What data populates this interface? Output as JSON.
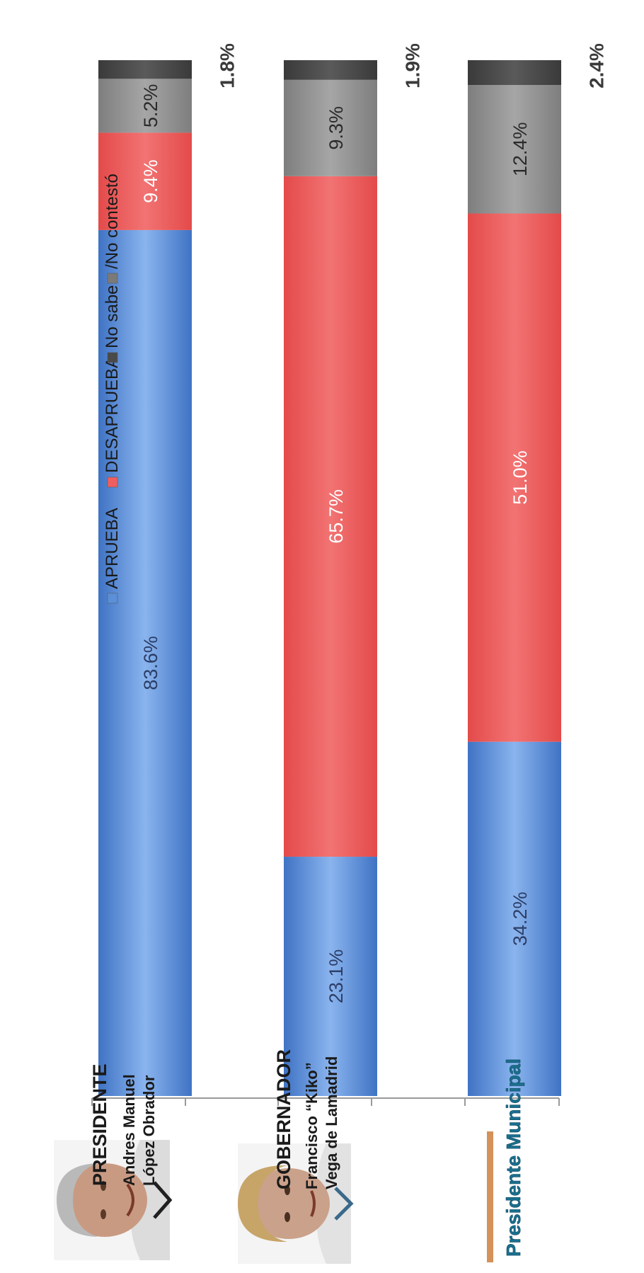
{
  "chart_data": {
    "type": "bar",
    "stacked": true,
    "orientation": "horizontal",
    "value_format": "percent",
    "xlim": [
      0,
      100
    ],
    "legend_placement": "top",
    "categories": [
      {
        "role": "PRESIDENTE",
        "name_line1": "Andres Manuel",
        "name_line2": "López Obrador"
      },
      {
        "role": "GOBERNADOR",
        "name_line1": "Francisco “Kiko”",
        "name_line2": "Vega de Lamadrid"
      },
      {
        "role": "Presidente Municipal",
        "name_line1": "",
        "name_line2": ""
      }
    ],
    "series": [
      {
        "name": "APRUEBA",
        "color": "#5b8fd8",
        "values": [
          83.6,
          23.1,
          34.2
        ],
        "labels": [
          "83.6%",
          "23.1%",
          "34.2%"
        ]
      },
      {
        "name": "DESAPRUEBA",
        "color": "#ef5f5f",
        "values": [
          9.4,
          65.7,
          51.0
        ],
        "labels": [
          "9.4%",
          "65.7%",
          "51.0%"
        ]
      },
      {
        "name": "No sabe",
        "color": "#969696",
        "values": [
          5.2,
          9.3,
          12.4
        ],
        "labels": [
          "5.2%",
          "9.3%",
          "12.4%"
        ]
      },
      {
        "name": "/No contestó",
        "color": "#4a4a4a",
        "values": [
          1.8,
          1.9,
          2.4
        ],
        "labels": [
          "1.8%",
          "1.9%",
          "2.4%"
        ]
      }
    ]
  },
  "colors": {
    "text": "#1a1a1a",
    "axis": "#9a9a9a",
    "municipal_accent": "#d4915a",
    "municipal_text": "#1a6f8e"
  },
  "icons": [
    "portrait-photo-presidente",
    "portrait-photo-gobernador"
  ]
}
